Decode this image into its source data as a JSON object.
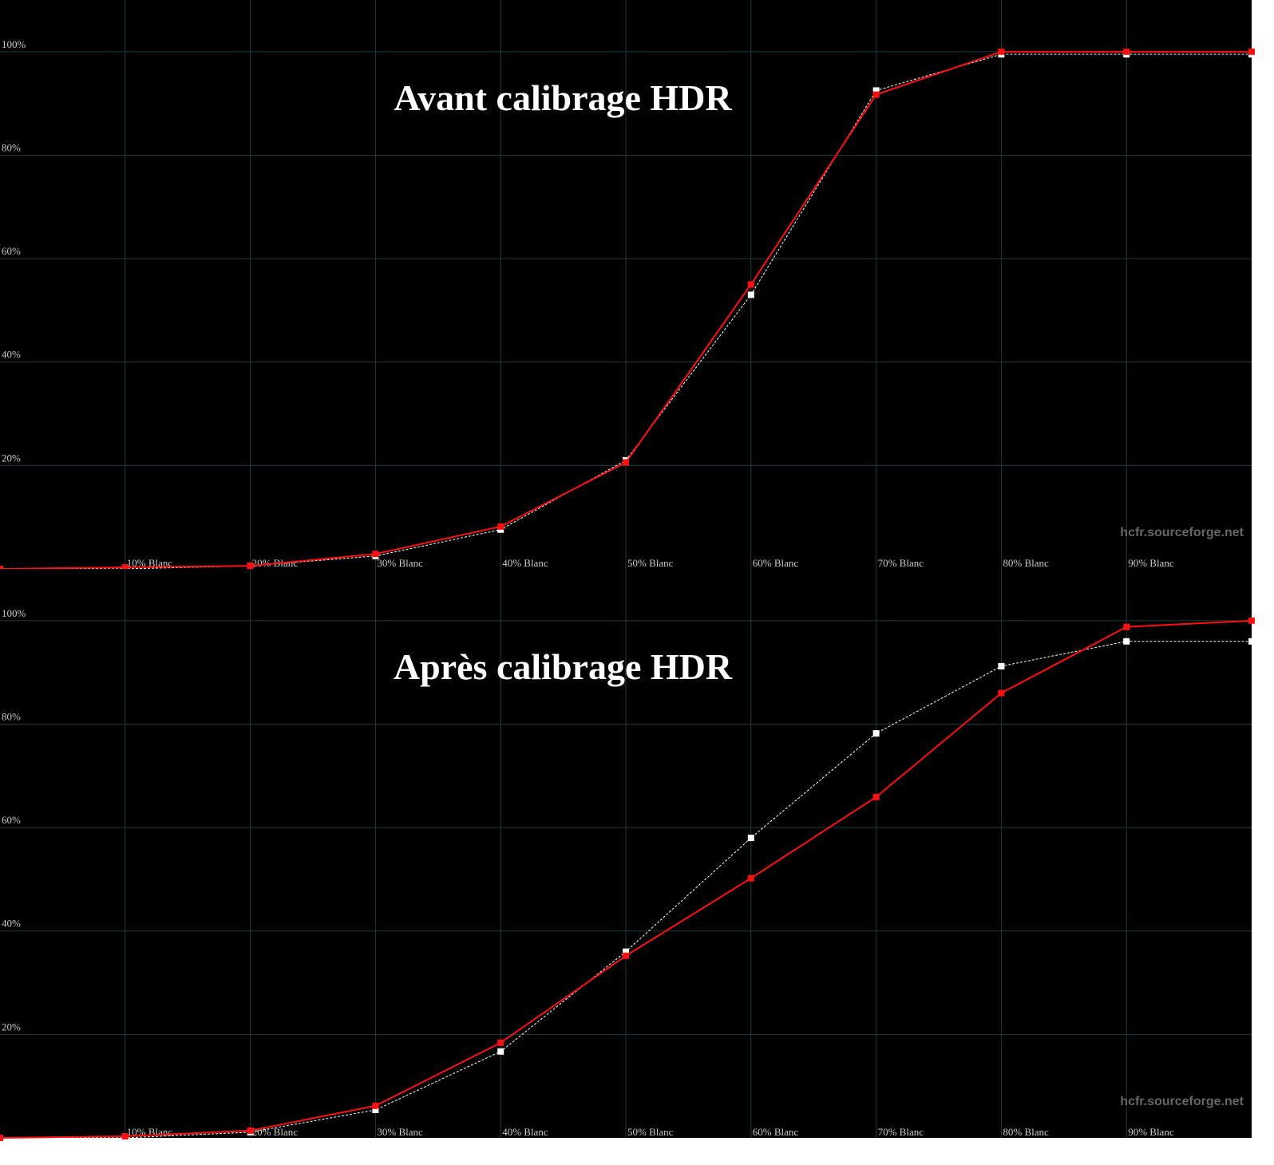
{
  "chart_data": [
    {
      "type": "line",
      "title": "Avant calibrage HDR",
      "watermark": "hcfr.sourceforge.net",
      "x": [
        0,
        10,
        20,
        30,
        40,
        50,
        60,
        70,
        80,
        90,
        100
      ],
      "series": [
        {
          "color": "#ff1010",
          "dashed": false,
          "values": [
            0,
            0.3,
            0.6,
            2.9,
            8.2,
            20.6,
            55.0,
            91.7,
            100,
            100,
            100
          ]
        },
        {
          "color": "#ffffff",
          "dashed": true,
          "values": [
            0,
            0,
            0.6,
            2.5,
            7.6,
            21,
            53,
            92.5,
            99.5,
            99.5,
            99.5
          ]
        }
      ],
      "xlim": [
        0,
        100
      ],
      "ylim": [
        0,
        110
      ],
      "xticks": [
        {
          "value": 10,
          "label": "10% Blanc"
        },
        {
          "value": 20,
          "label": "20% Blanc"
        },
        {
          "value": 30,
          "label": "30% Blanc"
        },
        {
          "value": 40,
          "label": "40% Blanc"
        },
        {
          "value": 50,
          "label": "50% Blanc"
        },
        {
          "value": 60,
          "label": "60% Blanc"
        },
        {
          "value": 70,
          "label": "70% Blanc"
        },
        {
          "value": 80,
          "label": "80% Blanc"
        },
        {
          "value": 90,
          "label": "90% Blanc"
        }
      ],
      "yticks": [
        {
          "value": 20,
          "label": "20%"
        },
        {
          "value": 40,
          "label": "40%"
        },
        {
          "value": 60,
          "label": "60%"
        },
        {
          "value": 80,
          "label": "80%"
        },
        {
          "value": 100,
          "label": "100%"
        }
      ],
      "grid": true
    },
    {
      "type": "line",
      "title": "Après calibrage HDR",
      "watermark": "hcfr.sourceforge.net",
      "x": [
        0,
        10,
        20,
        30,
        40,
        50,
        60,
        70,
        80,
        90,
        100
      ],
      "series": [
        {
          "color": "#ff1010",
          "dashed": false,
          "values": [
            0,
            0.3,
            1.4,
            6.2,
            18.4,
            35.2,
            50.2,
            65.9,
            86,
            98.8,
            100
          ]
        },
        {
          "color": "#ffffff",
          "dashed": true,
          "values": [
            0,
            0,
            1.1,
            5.4,
            16.7,
            36,
            58,
            78.2,
            91.2,
            96,
            96
          ]
        }
      ],
      "xlim": [
        0,
        100
      ],
      "ylim": [
        0,
        110
      ],
      "xticks": [
        {
          "value": 10,
          "label": "10% Blanc"
        },
        {
          "value": 20,
          "label": "20% Blanc"
        },
        {
          "value": 30,
          "label": "30% Blanc"
        },
        {
          "value": 40,
          "label": "40% Blanc"
        },
        {
          "value": 50,
          "label": "50% Blanc"
        },
        {
          "value": 60,
          "label": "60% Blanc"
        },
        {
          "value": 70,
          "label": "70% Blanc"
        },
        {
          "value": 80,
          "label": "80% Blanc"
        },
        {
          "value": 90,
          "label": "90% Blanc"
        }
      ],
      "yticks": [
        {
          "value": 20,
          "label": "20%"
        },
        {
          "value": 40,
          "label": "40%"
        },
        {
          "value": 60,
          "label": "60%"
        },
        {
          "value": 80,
          "label": "80%"
        },
        {
          "value": 100,
          "label": "100%"
        }
      ],
      "grid": true
    }
  ]
}
